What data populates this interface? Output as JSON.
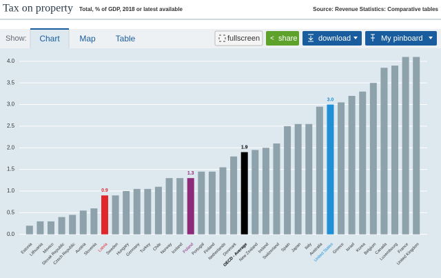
{
  "header": {
    "title": "Tax on property",
    "subtitle": "Total, % of GDP, 2018 or latest available",
    "source": "Source: Revenue Statistics: Comparative tables"
  },
  "toolbar": {
    "show": "Show:",
    "tabs": [
      "Chart",
      "Map",
      "Table"
    ],
    "buttons": [
      "fullscreen",
      "share",
      "download",
      "My pinboard"
    ]
  },
  "chart_data": {
    "type": "bar",
    "categories": [
      "Estonia",
      "Lithuania",
      "Mexico",
      "Slovak Republic",
      "Czech Republic",
      "Austria",
      "Slovenia",
      "Latvia",
      "Sweden",
      "Hungary",
      "Germany",
      "Turkey",
      "Chile",
      "Norway",
      "Iceland",
      "Poland",
      "Portugal",
      "Finland",
      "Netherlands",
      "Denmark",
      "OECD - Average",
      "New Zealand",
      "Ireland",
      "Switzerland",
      "Spain",
      "Japan",
      "Italy",
      "Australia",
      "United States",
      "Greece",
      "Israel",
      "Korea",
      "Belgium",
      "Canada",
      "Luxembourg",
      "France",
      "United Kingdom"
    ],
    "values": [
      0.2,
      0.3,
      0.3,
      0.4,
      0.45,
      0.55,
      0.6,
      0.9,
      0.9,
      1.0,
      1.05,
      1.05,
      1.1,
      1.3,
      1.3,
      1.3,
      1.45,
      1.45,
      1.55,
      1.8,
      1.9,
      1.95,
      2.0,
      2.1,
      2.5,
      2.55,
      2.55,
      2.95,
      3.0,
      3.05,
      3.2,
      3.3,
      3.5,
      3.85,
      3.9,
      4.1,
      4.1
    ],
    "value_labels": [
      null,
      null,
      null,
      null,
      null,
      null,
      null,
      "0.9",
      null,
      null,
      null,
      null,
      null,
      null,
      null,
      "1.3",
      null,
      null,
      null,
      null,
      "1.9",
      null,
      null,
      null,
      null,
      null,
      null,
      null,
      "3.0",
      null,
      null,
      null,
      null,
      null,
      null,
      null,
      null
    ],
    "color": "#8ea2ac",
    "colors": [
      null,
      null,
      null,
      null,
      null,
      null,
      null,
      "#e0252b",
      null,
      null,
      null,
      null,
      null,
      null,
      null,
      "#8e2a7a",
      null,
      null,
      null,
      null,
      "#000000",
      null,
      null,
      null,
      null,
      null,
      null,
      null,
      "#1f8fd6",
      null,
      null,
      null,
      null,
      null,
      null,
      null,
      null
    ],
    "ylim": [
      -0.1,
      4.3
    ],
    "yticks": [
      {
        "value": 0,
        "label": "0.0"
      },
      0.5,
      {
        "value": 1,
        "label": "1.0"
      },
      1.5,
      {
        "value": 2,
        "label": "2.0"
      },
      2.5,
      {
        "value": 3,
        "label": "3.0"
      },
      3.5,
      {
        "value": 4,
        "label": "4.0"
      }
    ],
    "grid": true
  }
}
